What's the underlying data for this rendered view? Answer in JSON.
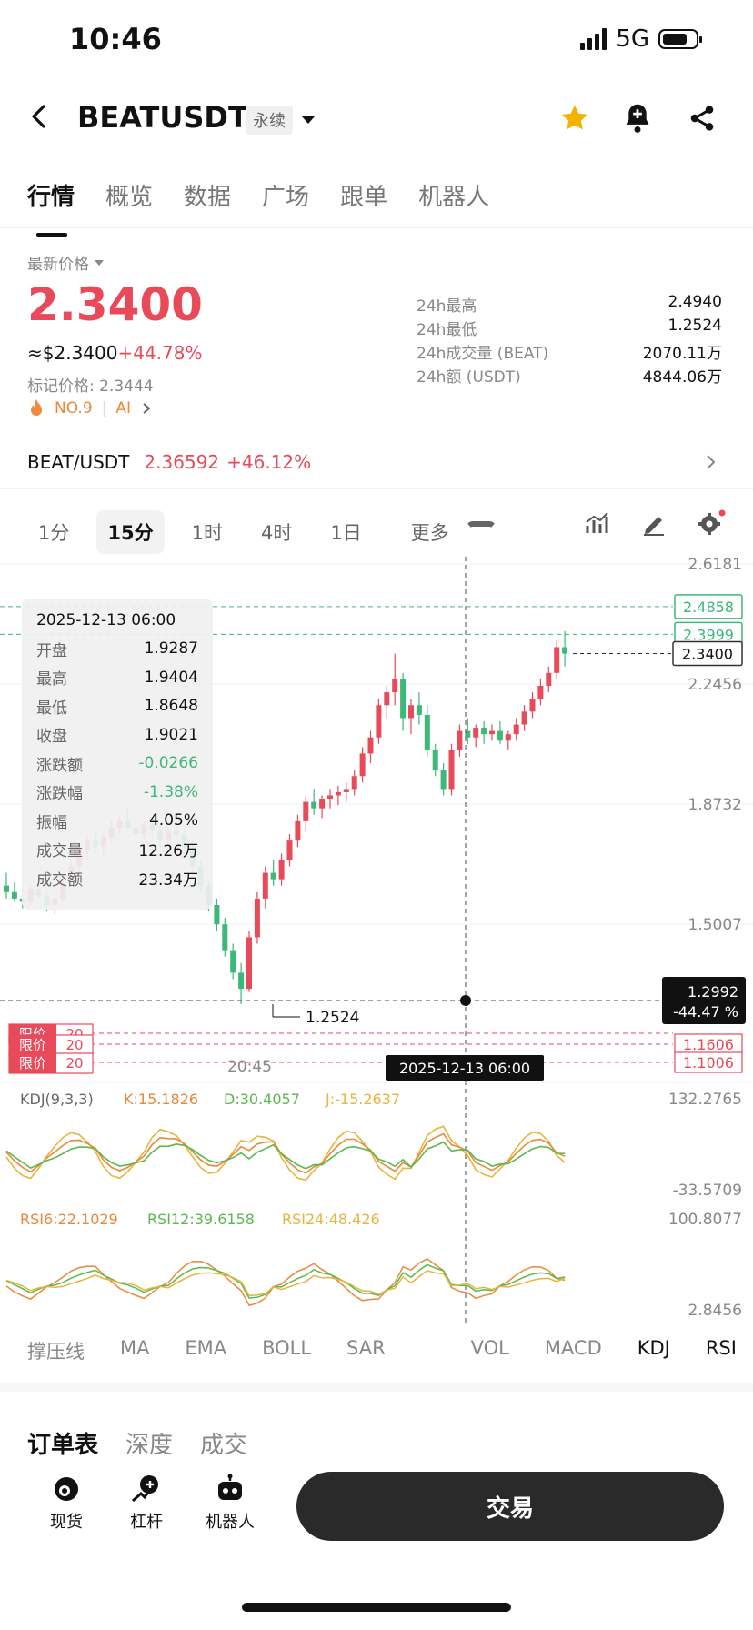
{
  "status": {
    "time": "10:46",
    "network": "5G"
  },
  "header": {
    "symbol": "BEATUSDT",
    "contract_type": "永续"
  },
  "tabs": [
    "行情",
    "概览",
    "数据",
    "广场",
    "跟单",
    "机器人"
  ],
  "price_panel": {
    "label": "最新价格",
    "last_price": "2.3400",
    "usd_price": "≈$2.3400",
    "change_pct": "+44.78%",
    "mark_price": "标记价格: 2.3444",
    "rank": "NO.9",
    "tag": "AI",
    "stats": [
      {
        "k": "24h最高",
        "v": "2.4940"
      },
      {
        "k": "24h最低",
        "v": "1.2524"
      },
      {
        "k": "24h成交量 (BEAT)",
        "v": "2070.11万"
      },
      {
        "k": "24h额 (USDT)",
        "v": "4844.06万"
      }
    ]
  },
  "spot_ref": {
    "pair": "BEAT/USDT",
    "price": "2.36592",
    "change": "+46.12%"
  },
  "timeframes": {
    "items": [
      "1分",
      "15分",
      "1时",
      "4时",
      "1日"
    ],
    "selected": "15分",
    "more": "更多"
  },
  "chart": {
    "price_ticks": [
      "2.6181",
      "2.2456",
      "1.8732",
      "1.5007"
    ],
    "level_tags": [
      "2.4858",
      "2.3999",
      "2.3400"
    ],
    "cursor_price": "1.2992",
    "cursor_pct": "-44.47 %",
    "order_tags": [
      "1.1606",
      "1.1006"
    ],
    "order_labels": [
      "限价",
      "限价",
      "限价"
    ],
    "order_qty": [
      "20",
      "20",
      "20"
    ],
    "low_label": "1.2524",
    "time_label": "20:45",
    "cursor_time": "2025-12-13 06:00",
    "kdj_legend": {
      "name": "KDJ(9,3,3)",
      "k": "K:15.1826",
      "d": "D:30.4057",
      "j": "J:-15.2637"
    },
    "kdj_ticks": [
      "132.2765",
      "-33.5709"
    ],
    "rsi_legend": {
      "r6": "RSI6:22.1029",
      "r12": "RSI12:39.6158",
      "r24": "RSI24:48.426"
    },
    "rsi_ticks": [
      "100.8077",
      "2.8456"
    ],
    "tooltip": [
      {
        "k": "",
        "v": "2025-12-13 06:00"
      },
      {
        "k": "开盘",
        "v": "1.9287"
      },
      {
        "k": "最高",
        "v": "1.9404"
      },
      {
        "k": "最低",
        "v": "1.8648"
      },
      {
        "k": "收盘",
        "v": "1.9021"
      },
      {
        "k": "涨跌额",
        "v": "-0.0266"
      },
      {
        "k": "涨跌幅",
        "v": "-1.38%"
      },
      {
        "k": "振幅",
        "v": "4.05%"
      },
      {
        "k": "成交量",
        "v": "12.26万"
      },
      {
        "k": "成交额",
        "v": "23.34万"
      }
    ]
  },
  "indicator_tabs": [
    "撑压线",
    "MA",
    "EMA",
    "BOLL",
    "SAR",
    "VOL",
    "MACD",
    "KDJ",
    "RSI"
  ],
  "order_tabs": [
    "订单表",
    "深度",
    "成交"
  ],
  "bottom_nav": [
    "现货",
    "杠杆",
    "机器人"
  ],
  "trade_button": "交易",
  "colors": {
    "up": "#e84a5a",
    "down": "#3cb878",
    "accent": "#f5b300"
  },
  "candles": [
    [
      1.62,
      1.66,
      1.58,
      1.6
    ],
    [
      1.6,
      1.63,
      1.57,
      1.58
    ],
    [
      1.58,
      1.61,
      1.55,
      1.57
    ],
    [
      1.57,
      1.62,
      1.56,
      1.61
    ],
    [
      1.61,
      1.64,
      1.58,
      1.59
    ],
    [
      1.59,
      1.61,
      1.54,
      1.56
    ],
    [
      1.56,
      1.6,
      1.53,
      1.58
    ],
    [
      1.58,
      1.65,
      1.57,
      1.63
    ],
    [
      1.63,
      1.7,
      1.62,
      1.68
    ],
    [
      1.68,
      1.75,
      1.66,
      1.73
    ],
    [
      1.73,
      1.78,
      1.7,
      1.76
    ],
    [
      1.76,
      1.8,
      1.72,
      1.74
    ],
    [
      1.74,
      1.79,
      1.71,
      1.77
    ],
    [
      1.77,
      1.82,
      1.75,
      1.8
    ],
    [
      1.8,
      1.84,
      1.78,
      1.82
    ],
    [
      1.82,
      1.86,
      1.79,
      1.8
    ],
    [
      1.8,
      1.83,
      1.76,
      1.78
    ],
    [
      1.78,
      1.82,
      1.76,
      1.81
    ],
    [
      1.81,
      1.83,
      1.77,
      1.79
    ],
    [
      1.79,
      1.81,
      1.74,
      1.76
    ],
    [
      1.76,
      1.8,
      1.75,
      1.79
    ],
    [
      1.79,
      1.82,
      1.77,
      1.78
    ],
    [
      1.78,
      1.8,
      1.72,
      1.74
    ],
    [
      1.74,
      1.76,
      1.66,
      1.68
    ],
    [
      1.68,
      1.7,
      1.6,
      1.62
    ],
    [
      1.62,
      1.64,
      1.54,
      1.56
    ],
    [
      1.56,
      1.58,
      1.48,
      1.5
    ],
    [
      1.5,
      1.52,
      1.4,
      1.42
    ],
    [
      1.42,
      1.44,
      1.33,
      1.35
    ],
    [
      1.35,
      1.38,
      1.2524,
      1.3
    ],
    [
      1.3,
      1.48,
      1.29,
      1.46
    ],
    [
      1.46,
      1.6,
      1.44,
      1.58
    ],
    [
      1.58,
      1.68,
      1.55,
      1.66
    ],
    [
      1.66,
      1.7,
      1.62,
      1.64
    ],
    [
      1.64,
      1.72,
      1.62,
      1.7
    ],
    [
      1.7,
      1.78,
      1.68,
      1.76
    ],
    [
      1.76,
      1.84,
      1.74,
      1.82
    ],
    [
      1.82,
      1.9,
      1.79,
      1.88
    ],
    [
      1.88,
      1.92,
      1.84,
      1.86
    ],
    [
      1.86,
      1.9,
      1.83,
      1.89
    ],
    [
      1.89,
      1.92,
      1.86,
      1.9
    ],
    [
      1.9,
      1.93,
      1.87,
      1.91
    ],
    [
      1.91,
      1.94,
      1.88,
      1.92
    ],
    [
      1.92,
      1.98,
      1.9,
      1.96
    ],
    [
      1.96,
      2.05,
      1.94,
      2.03
    ],
    [
      2.03,
      2.1,
      2.0,
      2.08
    ],
    [
      2.08,
      2.2,
      2.06,
      2.18
    ],
    [
      2.18,
      2.24,
      2.14,
      2.22
    ],
    [
      2.22,
      2.34,
      2.18,
      2.26
    ],
    [
      2.26,
      2.28,
      2.1,
      2.14
    ],
    [
      2.14,
      2.2,
      2.09,
      2.18
    ],
    [
      2.18,
      2.22,
      2.12,
      2.15
    ],
    [
      2.15,
      2.18,
      2.02,
      2.04
    ],
    [
      2.04,
      2.06,
      1.96,
      1.98
    ],
    [
      1.98,
      2.0,
      1.9,
      1.92
    ],
    [
      1.92,
      2.06,
      1.9,
      2.04
    ],
    [
      2.04,
      2.12,
      2.02,
      2.1
    ],
    [
      2.1,
      2.14,
      2.06,
      2.08
    ],
    [
      2.08,
      2.12,
      2.05,
      2.11
    ],
    [
      2.11,
      2.13,
      2.06,
      2.09
    ],
    [
      2.09,
      2.12,
      2.07,
      2.1
    ],
    [
      2.1,
      2.13,
      2.06,
      2.07
    ],
    [
      2.07,
      2.1,
      2.04,
      2.09
    ],
    [
      2.09,
      2.14,
      2.07,
      2.12
    ],
    [
      2.12,
      2.18,
      2.1,
      2.16
    ],
    [
      2.16,
      2.22,
      2.14,
      2.2
    ],
    [
      2.2,
      2.26,
      2.18,
      2.24
    ],
    [
      2.24,
      2.3,
      2.22,
      2.28
    ],
    [
      2.28,
      2.38,
      2.26,
      2.36
    ],
    [
      2.36,
      2.41,
      2.3,
      2.34
    ]
  ]
}
